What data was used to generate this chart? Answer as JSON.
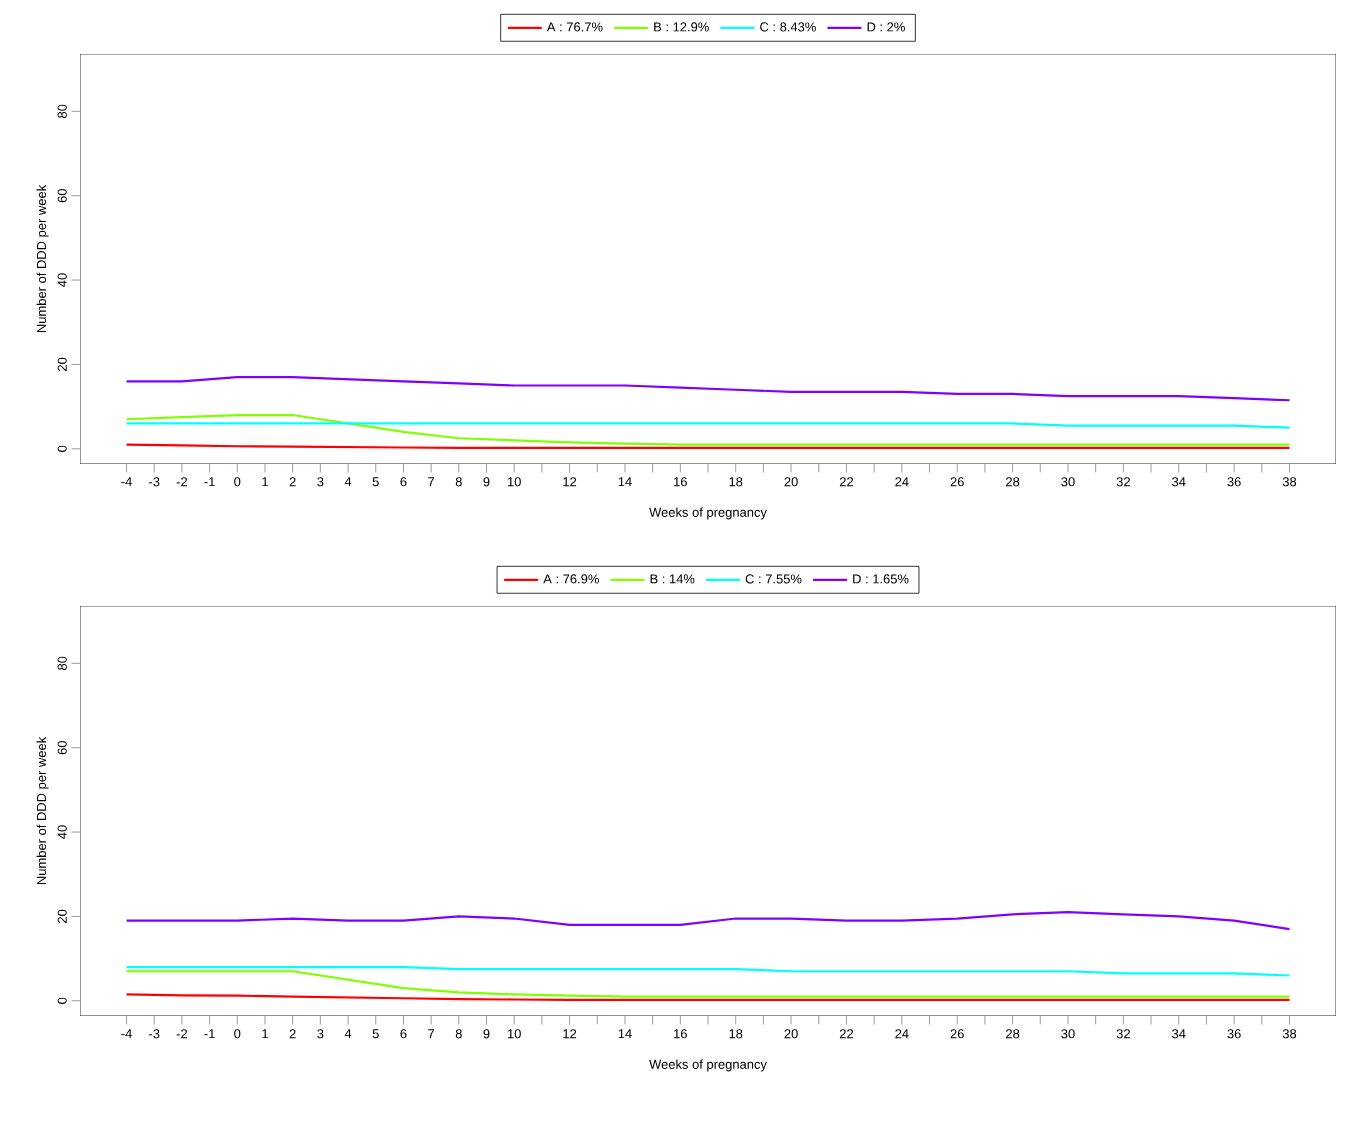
{
  "chart_data": [
    {
      "type": "line",
      "xlabel": "Weeks of pregnancy",
      "ylabel": "Number of DDD per week",
      "legend": "top",
      "grid": false,
      "marker": "none",
      "line_style": "solid",
      "xlim": [
        -5.68,
        39.68
      ],
      "ylim": [
        -3.6,
        93.6
      ],
      "yticks": [
        0,
        20,
        40,
        60,
        80
      ],
      "xticks": [
        -4,
        -3,
        -2,
        -1,
        0,
        1,
        2,
        3,
        4,
        5,
        6,
        7,
        8,
        9,
        10,
        {
          "value": 11,
          "label": null
        },
        12,
        {
          "value": 13,
          "label": null
        },
        14,
        {
          "value": 15,
          "label": null
        },
        16,
        {
          "value": 17,
          "label": null
        },
        18,
        {
          "value": 19,
          "label": null
        },
        20,
        {
          "value": 21,
          "label": null
        },
        22,
        {
          "value": 23,
          "label": null
        },
        24,
        {
          "value": 25,
          "label": null
        },
        26,
        {
          "value": 27,
          "label": null
        },
        28,
        {
          "value": 29,
          "label": null
        },
        30,
        {
          "value": 31,
          "label": null
        },
        32,
        {
          "value": 33,
          "label": null
        },
        34,
        {
          "value": 35,
          "label": null
        },
        36,
        {
          "value": 37,
          "label": null
        },
        38
      ],
      "x": [
        -4,
        -2,
        0,
        2,
        4,
        6,
        8,
        10,
        12,
        14,
        16,
        18,
        20,
        22,
        24,
        26,
        28,
        30,
        32,
        34,
        36,
        38
      ],
      "series": [
        {
          "name": "A : 76.7%",
          "color": "#ff0000",
          "values": [
            1,
            0.8,
            0.6,
            0.5,
            0.4,
            0.3,
            0.2,
            0.2,
            0.2,
            0.2,
            0.2,
            0.2,
            0.2,
            0.2,
            0.2,
            0.2,
            0.2,
            0.2,
            0.2,
            0.2,
            0.2,
            0.2
          ]
        },
        {
          "name": "B : 12.9%",
          "color": "#80ff00",
          "values": [
            7,
            7.5,
            8,
            8,
            6,
            4,
            2.5,
            2,
            1.5,
            1.2,
            1,
            1,
            1,
            1,
            1,
            1,
            1,
            1,
            1,
            1,
            1,
            1
          ]
        },
        {
          "name": "C : 8.43%",
          "color": "#00ffff",
          "values": [
            6,
            6,
            6,
            6,
            6,
            6,
            6,
            6,
            6,
            6,
            6,
            6,
            6,
            6,
            6,
            6,
            6,
            5.5,
            5.5,
            5.5,
            5.5,
            5
          ]
        },
        {
          "name": "D : 2%",
          "color": "#8000ff",
          "values": [
            16,
            16,
            17,
            17,
            16.5,
            16,
            15.5,
            15,
            15,
            15,
            14.5,
            14,
            13.5,
            13.5,
            13.5,
            13,
            13,
            12.5,
            12.5,
            12.5,
            12,
            11.5
          ]
        }
      ]
    },
    {
      "type": "line",
      "xlabel": "Weeks of pregnancy",
      "ylabel": "Number of DDD per week",
      "legend": "top",
      "grid": false,
      "marker": "none",
      "line_style": "solid",
      "xlim": [
        -5.68,
        39.68
      ],
      "ylim": [
        -3.6,
        93.6
      ],
      "yticks": [
        0,
        20,
        40,
        60,
        80
      ],
      "xticks": [
        -4,
        -3,
        -2,
        -1,
        0,
        1,
        2,
        3,
        4,
        5,
        6,
        7,
        8,
        9,
        10,
        {
          "value": 11,
          "label": null
        },
        12,
        {
          "value": 13,
          "label": null
        },
        14,
        {
          "value": 15,
          "label": null
        },
        16,
        {
          "value": 17,
          "label": null
        },
        18,
        {
          "value": 19,
          "label": null
        },
        20,
        {
          "value": 21,
          "label": null
        },
        22,
        {
          "value": 23,
          "label": null
        },
        24,
        {
          "value": 25,
          "label": null
        },
        26,
        {
          "value": 27,
          "label": null
        },
        28,
        {
          "value": 29,
          "label": null
        },
        30,
        {
          "value": 31,
          "label": null
        },
        32,
        {
          "value": 33,
          "label": null
        },
        34,
        {
          "value": 35,
          "label": null
        },
        36,
        {
          "value": 37,
          "label": null
        },
        38
      ],
      "x": [
        -4,
        -2,
        0,
        2,
        4,
        6,
        8,
        10,
        12,
        14,
        16,
        18,
        20,
        22,
        24,
        26,
        28,
        30,
        32,
        34,
        36,
        38
      ],
      "series": [
        {
          "name": "A : 76.9%",
          "color": "#ff0000",
          "values": [
            1.5,
            1.3,
            1.2,
            1,
            0.8,
            0.6,
            0.4,
            0.3,
            0.2,
            0.2,
            0.2,
            0.2,
            0.2,
            0.2,
            0.2,
            0.2,
            0.2,
            0.2,
            0.2,
            0.2,
            0.2,
            0.2
          ]
        },
        {
          "name": "B : 14%",
          "color": "#80ff00",
          "values": [
            7,
            7,
            7,
            7,
            5,
            3,
            2,
            1.5,
            1.2,
            1,
            1,
            1,
            1,
            1,
            1,
            1,
            1,
            1,
            1,
            1,
            1,
            1
          ]
        },
        {
          "name": "C : 7.55%",
          "color": "#00ffff",
          "values": [
            8,
            8,
            8,
            8,
            8,
            8,
            7.5,
            7.5,
            7.5,
            7.5,
            7.5,
            7.5,
            7,
            7,
            7,
            7,
            7,
            7,
            6.5,
            6.5,
            6.5,
            6
          ]
        },
        {
          "name": "D : 1.65%",
          "color": "#8000ff",
          "values": [
            19,
            19,
            19,
            19.5,
            19,
            19,
            20,
            19.5,
            18,
            18,
            18,
            19.5,
            19.5,
            19,
            19,
            19.5,
            20.5,
            21,
            20.5,
            20,
            19,
            17
          ]
        }
      ]
    }
  ]
}
